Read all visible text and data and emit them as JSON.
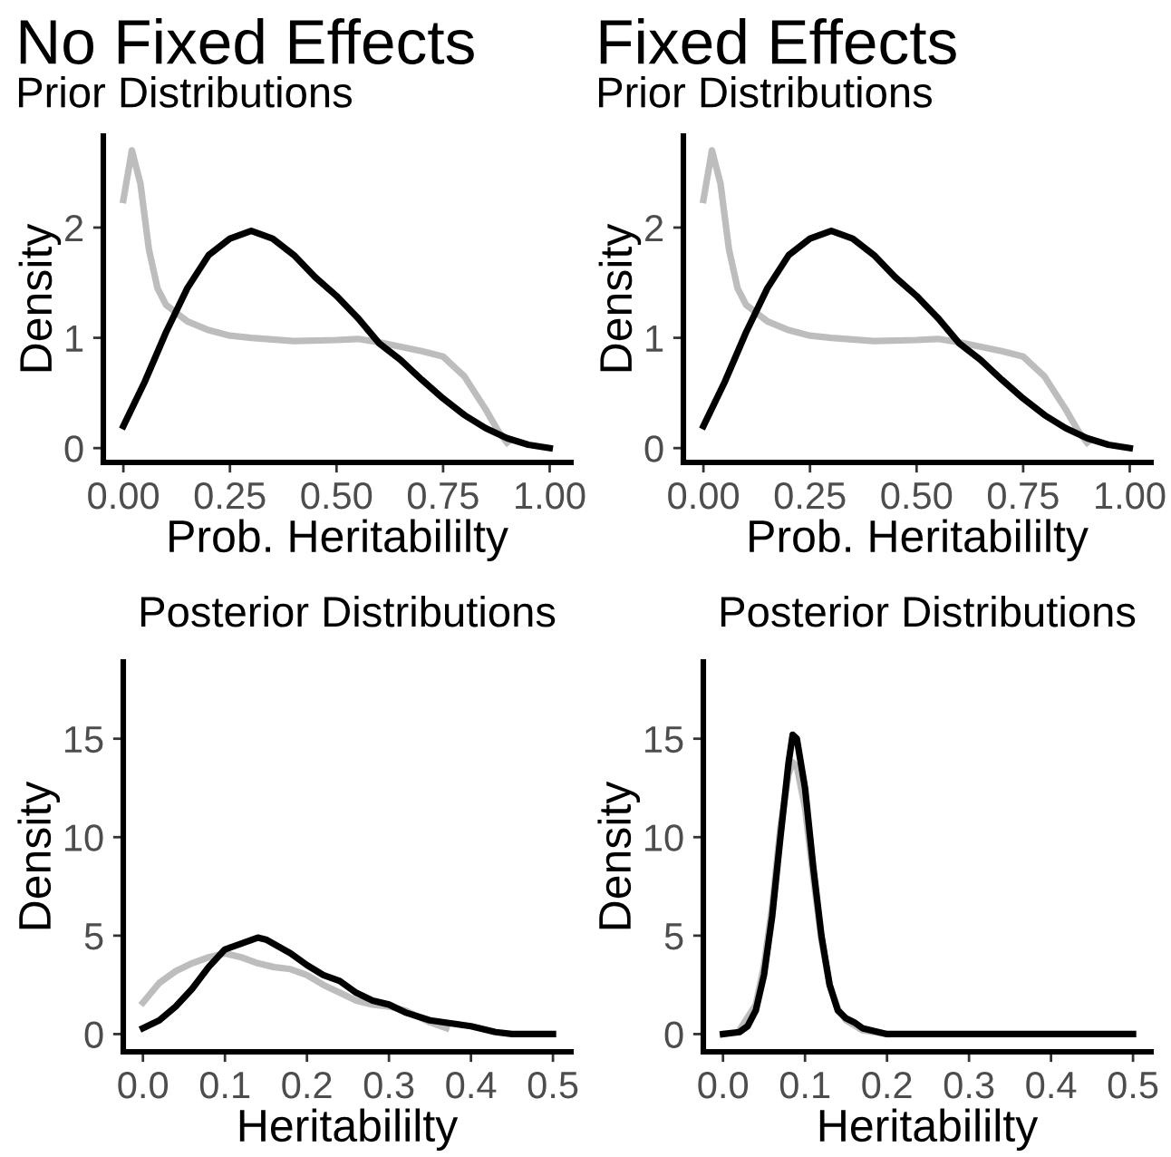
{
  "chart_data": [
    {
      "type": "line",
      "title": "No Fixed Effects",
      "subtitle": "Prior Distributions",
      "xlabel": "Prob. Heritabililty",
      "ylabel": "Density",
      "xlim": [
        -0.047,
        1.05
      ],
      "ylim": [
        -0.13,
        2.83
      ],
      "xticks": [
        {
          "value": 0,
          "label": "0.00"
        },
        0.25,
        {
          "value": 0.5,
          "label": "0.50"
        },
        0.75,
        {
          "value": 1,
          "label": "1.00"
        }
      ],
      "yticks": [
        0,
        1,
        2
      ],
      "marker": "none",
      "line_style": "solid",
      "series": [
        {
          "color": "#bdbdbd",
          "x": [
            0,
            0.02,
            0.04,
            0.06,
            0.08,
            0.1,
            0.15,
            0.2,
            0.25,
            0.3,
            0.4,
            0.5,
            0.55,
            0.6,
            0.7,
            0.75,
            0.8,
            0.85,
            0.88,
            0.9
          ],
          "values": [
            2.25,
            2.7,
            2.4,
            1.8,
            1.45,
            1.3,
            1.15,
            1.07,
            1.02,
            1.0,
            0.97,
            0.98,
            0.99,
            0.96,
            0.88,
            0.83,
            0.65,
            0.35,
            0.15,
            0.05
          ]
        },
        {
          "color": "#000000",
          "x": [
            0,
            0.05,
            0.1,
            0.15,
            0.2,
            0.25,
            0.3,
            0.35,
            0.4,
            0.45,
            0.5,
            0.55,
            0.6,
            0.65,
            0.7,
            0.75,
            0.8,
            0.85,
            0.9,
            0.95,
            1.0
          ],
          "values": [
            0.2,
            0.6,
            1.05,
            1.45,
            1.75,
            1.9,
            1.97,
            1.9,
            1.75,
            1.55,
            1.38,
            1.18,
            0.95,
            0.8,
            0.62,
            0.45,
            0.3,
            0.18,
            0.09,
            0.03,
            0.0
          ]
        }
      ]
    },
    {
      "type": "line",
      "title": "Fixed Effects",
      "subtitle": "Prior Distributions",
      "xlabel": "Prob. Heritabililty",
      "ylabel": "Density",
      "xlim": [
        -0.047,
        1.05
      ],
      "ylim": [
        -0.13,
        2.83
      ],
      "xticks": [
        {
          "value": 0,
          "label": "0.00"
        },
        0.25,
        {
          "value": 0.5,
          "label": "0.50"
        },
        0.75,
        {
          "value": 1,
          "label": "1.00"
        }
      ],
      "yticks": [
        0,
        1,
        2
      ],
      "marker": "none",
      "line_style": "solid",
      "series": [
        {
          "color": "#bdbdbd",
          "x": [
            0,
            0.02,
            0.04,
            0.06,
            0.08,
            0.1,
            0.15,
            0.2,
            0.25,
            0.3,
            0.4,
            0.5,
            0.55,
            0.6,
            0.7,
            0.75,
            0.8,
            0.85,
            0.88,
            0.9
          ],
          "values": [
            2.25,
            2.7,
            2.4,
            1.8,
            1.45,
            1.3,
            1.15,
            1.07,
            1.02,
            1.0,
            0.97,
            0.98,
            0.99,
            0.96,
            0.88,
            0.83,
            0.65,
            0.35,
            0.15,
            0.05
          ]
        },
        {
          "color": "#000000",
          "x": [
            0,
            0.05,
            0.1,
            0.15,
            0.2,
            0.25,
            0.3,
            0.35,
            0.4,
            0.45,
            0.5,
            0.55,
            0.6,
            0.65,
            0.7,
            0.75,
            0.8,
            0.85,
            0.9,
            0.95,
            1.0
          ],
          "values": [
            0.2,
            0.6,
            1.05,
            1.45,
            1.75,
            1.9,
            1.97,
            1.9,
            1.75,
            1.55,
            1.38,
            1.18,
            0.95,
            0.8,
            0.62,
            0.45,
            0.3,
            0.18,
            0.09,
            0.03,
            0.0
          ]
        }
      ]
    },
    {
      "type": "line",
      "title": "Posterior Distributions",
      "xlabel": "Heritabililty",
      "ylabel": "Density",
      "xlim": [
        -0.024,
        0.522
      ],
      "ylim": [
        -0.9,
        18.9
      ],
      "xticks": [
        {
          "value": 0,
          "label": "0.0"
        },
        0.1,
        0.2,
        0.3,
        0.4,
        0.5
      ],
      "yticks": [
        0,
        5,
        10,
        15
      ],
      "marker": "none",
      "line_style": "solid",
      "series": [
        {
          "color": "#bdbdbd",
          "x": [
            0,
            0.02,
            0.04,
            0.06,
            0.08,
            0.1,
            0.12,
            0.14,
            0.16,
            0.18,
            0.2,
            0.22,
            0.24,
            0.26,
            0.28,
            0.3,
            0.32,
            0.35,
            0.37
          ],
          "values": [
            1.6,
            2.6,
            3.2,
            3.6,
            3.9,
            4.1,
            3.9,
            3.6,
            3.4,
            3.3,
            3.0,
            2.5,
            2.1,
            1.7,
            1.5,
            1.4,
            1.2,
            0.6,
            0.3
          ]
        },
        {
          "color": "#000000",
          "x": [
            0,
            0.02,
            0.04,
            0.06,
            0.08,
            0.1,
            0.12,
            0.14,
            0.15,
            0.18,
            0.2,
            0.22,
            0.24,
            0.26,
            0.28,
            0.3,
            0.32,
            0.35,
            0.4,
            0.43,
            0.45,
            0.5
          ],
          "values": [
            0.3,
            0.7,
            1.4,
            2.3,
            3.4,
            4.3,
            4.6,
            4.9,
            4.8,
            4.1,
            3.5,
            3.0,
            2.7,
            2.1,
            1.7,
            1.5,
            1.1,
            0.7,
            0.4,
            0.1,
            0.0,
            0.0
          ]
        }
      ]
    },
    {
      "type": "line",
      "title": "Posterior Distributions",
      "xlabel": "Heritabililty",
      "ylabel": "Density",
      "xlim": [
        -0.024,
        0.522
      ],
      "ylim": [
        -0.9,
        18.9
      ],
      "xticks": [
        {
          "value": 0,
          "label": "0.0"
        },
        0.1,
        0.2,
        0.3,
        0.4,
        0.5
      ],
      "yticks": [
        0,
        5,
        10,
        15
      ],
      "marker": "none",
      "line_style": "solid",
      "series": [
        {
          "color": "#bdbdbd",
          "x": [
            0.02,
            0.04,
            0.05,
            0.06,
            0.07,
            0.08,
            0.085,
            0.09,
            0.1,
            0.11,
            0.12,
            0.13,
            0.14,
            0.15,
            0.17,
            0.2
          ],
          "values": [
            0.2,
            1.5,
            3.5,
            6.5,
            10.5,
            13.2,
            13.8,
            13.6,
            11.5,
            8.0,
            4.8,
            2.5,
            1.3,
            0.7,
            0.2,
            0.0
          ]
        },
        {
          "color": "#000000",
          "x": [
            0,
            0.02,
            0.03,
            0.04,
            0.05,
            0.06,
            0.07,
            0.08,
            0.085,
            0.09,
            0.1,
            0.11,
            0.12,
            0.13,
            0.14,
            0.15,
            0.16,
            0.17,
            0.2,
            0.25,
            0.5
          ],
          "values": [
            0,
            0.1,
            0.4,
            1.2,
            3.0,
            6.0,
            10.0,
            13.8,
            15.2,
            15.0,
            12.5,
            8.5,
            5.0,
            2.5,
            1.2,
            0.8,
            0.6,
            0.3,
            0.0,
            0,
            0
          ]
        }
      ]
    }
  ]
}
